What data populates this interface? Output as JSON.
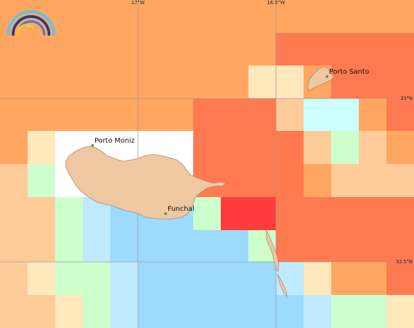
{
  "map": {
    "longitude_labels": [
      "17°W",
      "16.5°W"
    ],
    "latitude_labels": [
      "33°N",
      "32.5°N"
    ],
    "places": [
      {
        "name": "Porto Santo"
      },
      {
        "name": "Porto Moniz"
      },
      {
        "name": "Funchal"
      }
    ],
    "colors": {
      "land": "#efc8a2",
      "coast": "#a88a70",
      "grid_line": "#9a9a9a",
      "place_marker": "#3e8e2a",
      "deep_orange": "#ff7a50",
      "red": "#ff3c3c",
      "orange": "#ffa761",
      "light_orange": "#ffcc99",
      "pale_yellow": "#ffe8bb",
      "pale_green": "#ccffcc",
      "pale_cyan": "#ccffff",
      "light_blue": "#bfeaff",
      "blue": "#9cdaff",
      "blank": "#ffffff"
    },
    "logo_icon": "rainbow-arc-logo"
  }
}
